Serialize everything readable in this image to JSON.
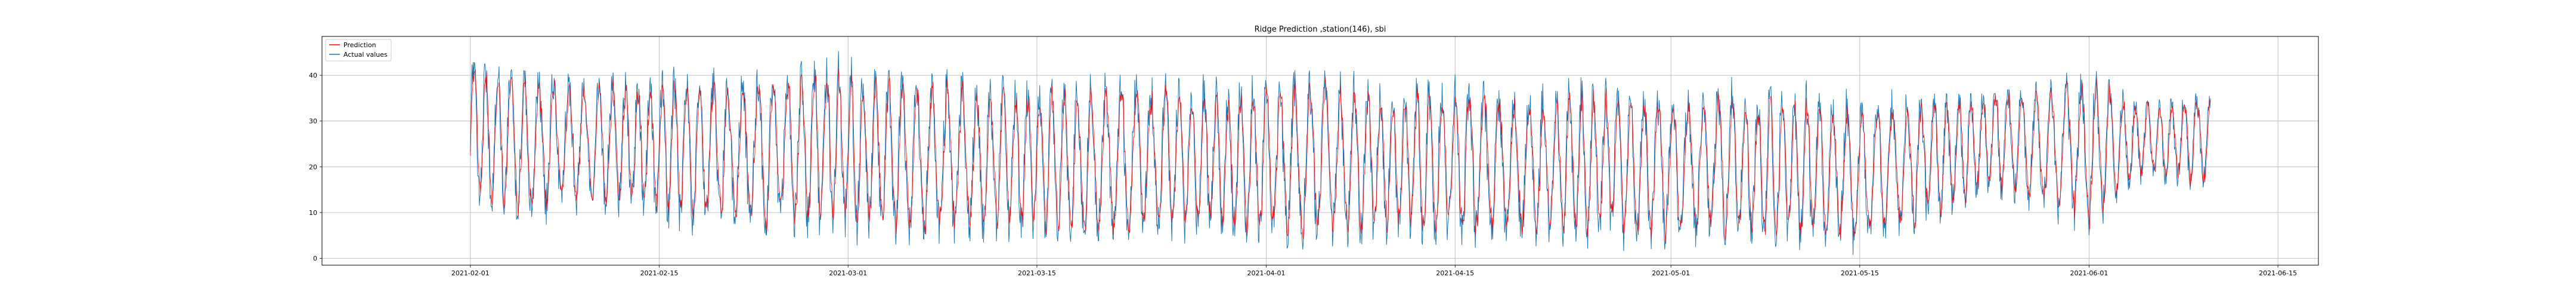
{
  "chart_data": {
    "type": "line",
    "title": "Ridge Prediction ,station(146), sbi",
    "xlabel": "",
    "ylabel": "",
    "x_range": [
      "2021-01-21",
      "2021-06-18"
    ],
    "x_data_range": [
      "2021-02-01",
      "2021-06-10"
    ],
    "ylim": [
      -1.5,
      48.5
    ],
    "x_ticks": [
      "2021-02-01",
      "2021-02-15",
      "2021-03-01",
      "2021-03-15",
      "2021-04-01",
      "2021-04-15",
      "2021-05-01",
      "2021-05-15",
      "2021-06-01",
      "2021-06-15"
    ],
    "y_ticks": [
      0,
      10,
      20,
      30,
      40
    ],
    "grid": true,
    "legend_position": "top-left",
    "series": [
      {
        "name": "Prediction",
        "color": "#ff0000"
      },
      {
        "name": "Actual values",
        "color": "#1f77b4"
      }
    ],
    "envelope": {
      "x": [
        "2021-02-01",
        "2021-02-05",
        "2021-02-10",
        "2021-02-15",
        "2021-02-20",
        "2021-02-25",
        "2021-03-01",
        "2021-03-05",
        "2021-03-10",
        "2021-03-15",
        "2021-03-20",
        "2021-03-25",
        "2021-04-01",
        "2021-04-05",
        "2021-04-10",
        "2021-04-15",
        "2021-04-20",
        "2021-04-25",
        "2021-05-01",
        "2021-05-05",
        "2021-05-10",
        "2021-05-15",
        "2021-05-20",
        "2021-05-25",
        "2021-06-01",
        "2021-06-05",
        "2021-06-10"
      ],
      "low": [
        5,
        2,
        8,
        4,
        3,
        2,
        3,
        2,
        3,
        4,
        3,
        2,
        2,
        1,
        3,
        2,
        3,
        1,
        2,
        3,
        2,
        0,
        4,
        10,
        1,
        13,
        12
      ],
      "high": [
        43,
        41,
        40,
        42,
        42,
        44,
        46,
        43,
        42,
        42,
        42,
        41,
        42,
        43,
        41,
        43,
        41,
        40,
        40,
        41,
        42,
        38,
        36,
        36,
        42,
        34,
        37
      ],
      "center": [
        28,
        25,
        26,
        24,
        23,
        24,
        24,
        22,
        22,
        21,
        22,
        22,
        21,
        22,
        21,
        21,
        20,
        21,
        20,
        21,
        20,
        18,
        22,
        26,
        24,
        26,
        26
      ]
    }
  }
}
